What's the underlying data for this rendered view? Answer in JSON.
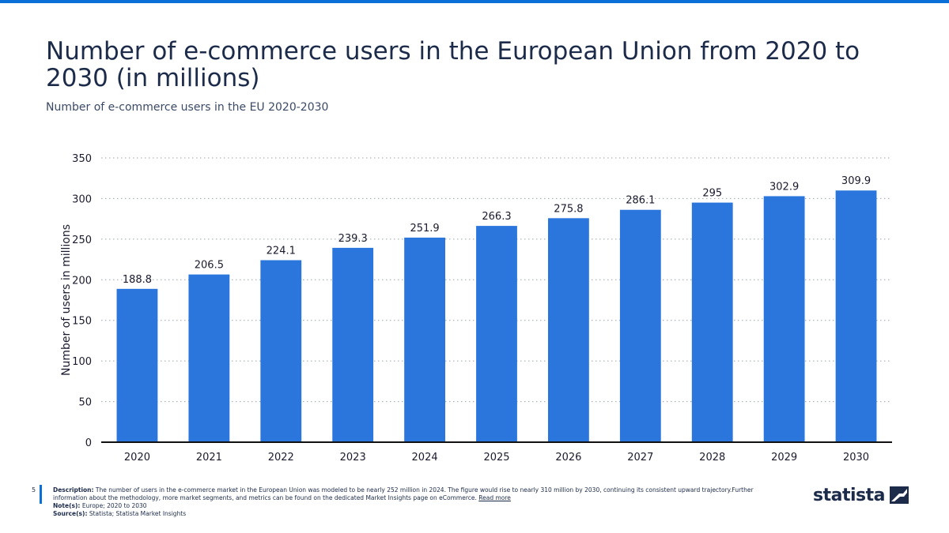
{
  "header": {
    "title": "Number of e-commerce users in the European Union from 2020 to 2030 (in millions)",
    "subtitle": "Number of e-commerce users in the EU 2020-2030"
  },
  "chart_data": {
    "type": "bar",
    "categories": [
      "2020",
      "2021",
      "2022",
      "2023",
      "2024",
      "2025",
      "2026",
      "2027",
      "2028",
      "2029",
      "2030"
    ],
    "values": [
      188.8,
      206.5,
      224.1,
      239.3,
      251.9,
      266.3,
      275.8,
      286.1,
      295,
      302.9,
      309.9
    ],
    "data_labels": [
      "188.8",
      "206.5",
      "224.1",
      "239.3",
      "251.9",
      "266.3",
      "275.8",
      "286.1",
      "295",
      "302.9",
      "309.9"
    ],
    "ylabel": "Number of users in millions",
    "ylim": [
      0,
      350
    ],
    "yticks": [
      "0",
      "50",
      "100",
      "150",
      "200",
      "250",
      "300",
      "350"
    ],
    "grid": true,
    "bar_color": "#2a76dd"
  },
  "footer": {
    "page_number": "5",
    "description_label": "Description:",
    "description": "The number of users in the e-commerce market in the European Union was modeled to be nearly 252 million in 2024. The figure would rise to nearly 310 million by 2030, continuing its consistent upward trajectory.Further information about the methodology, more market segments, and metrics can be found on the dedicated Market Insights page on eCommerce.",
    "read_more": "Read more",
    "notes_label": "Note(s):",
    "notes": "Europe; 2020 to 2030",
    "sources_label": "Source(s):",
    "sources": "Statista; Statista Market Insights",
    "logo_text": "statista",
    "logo_icon": "statista-logo-icon"
  }
}
